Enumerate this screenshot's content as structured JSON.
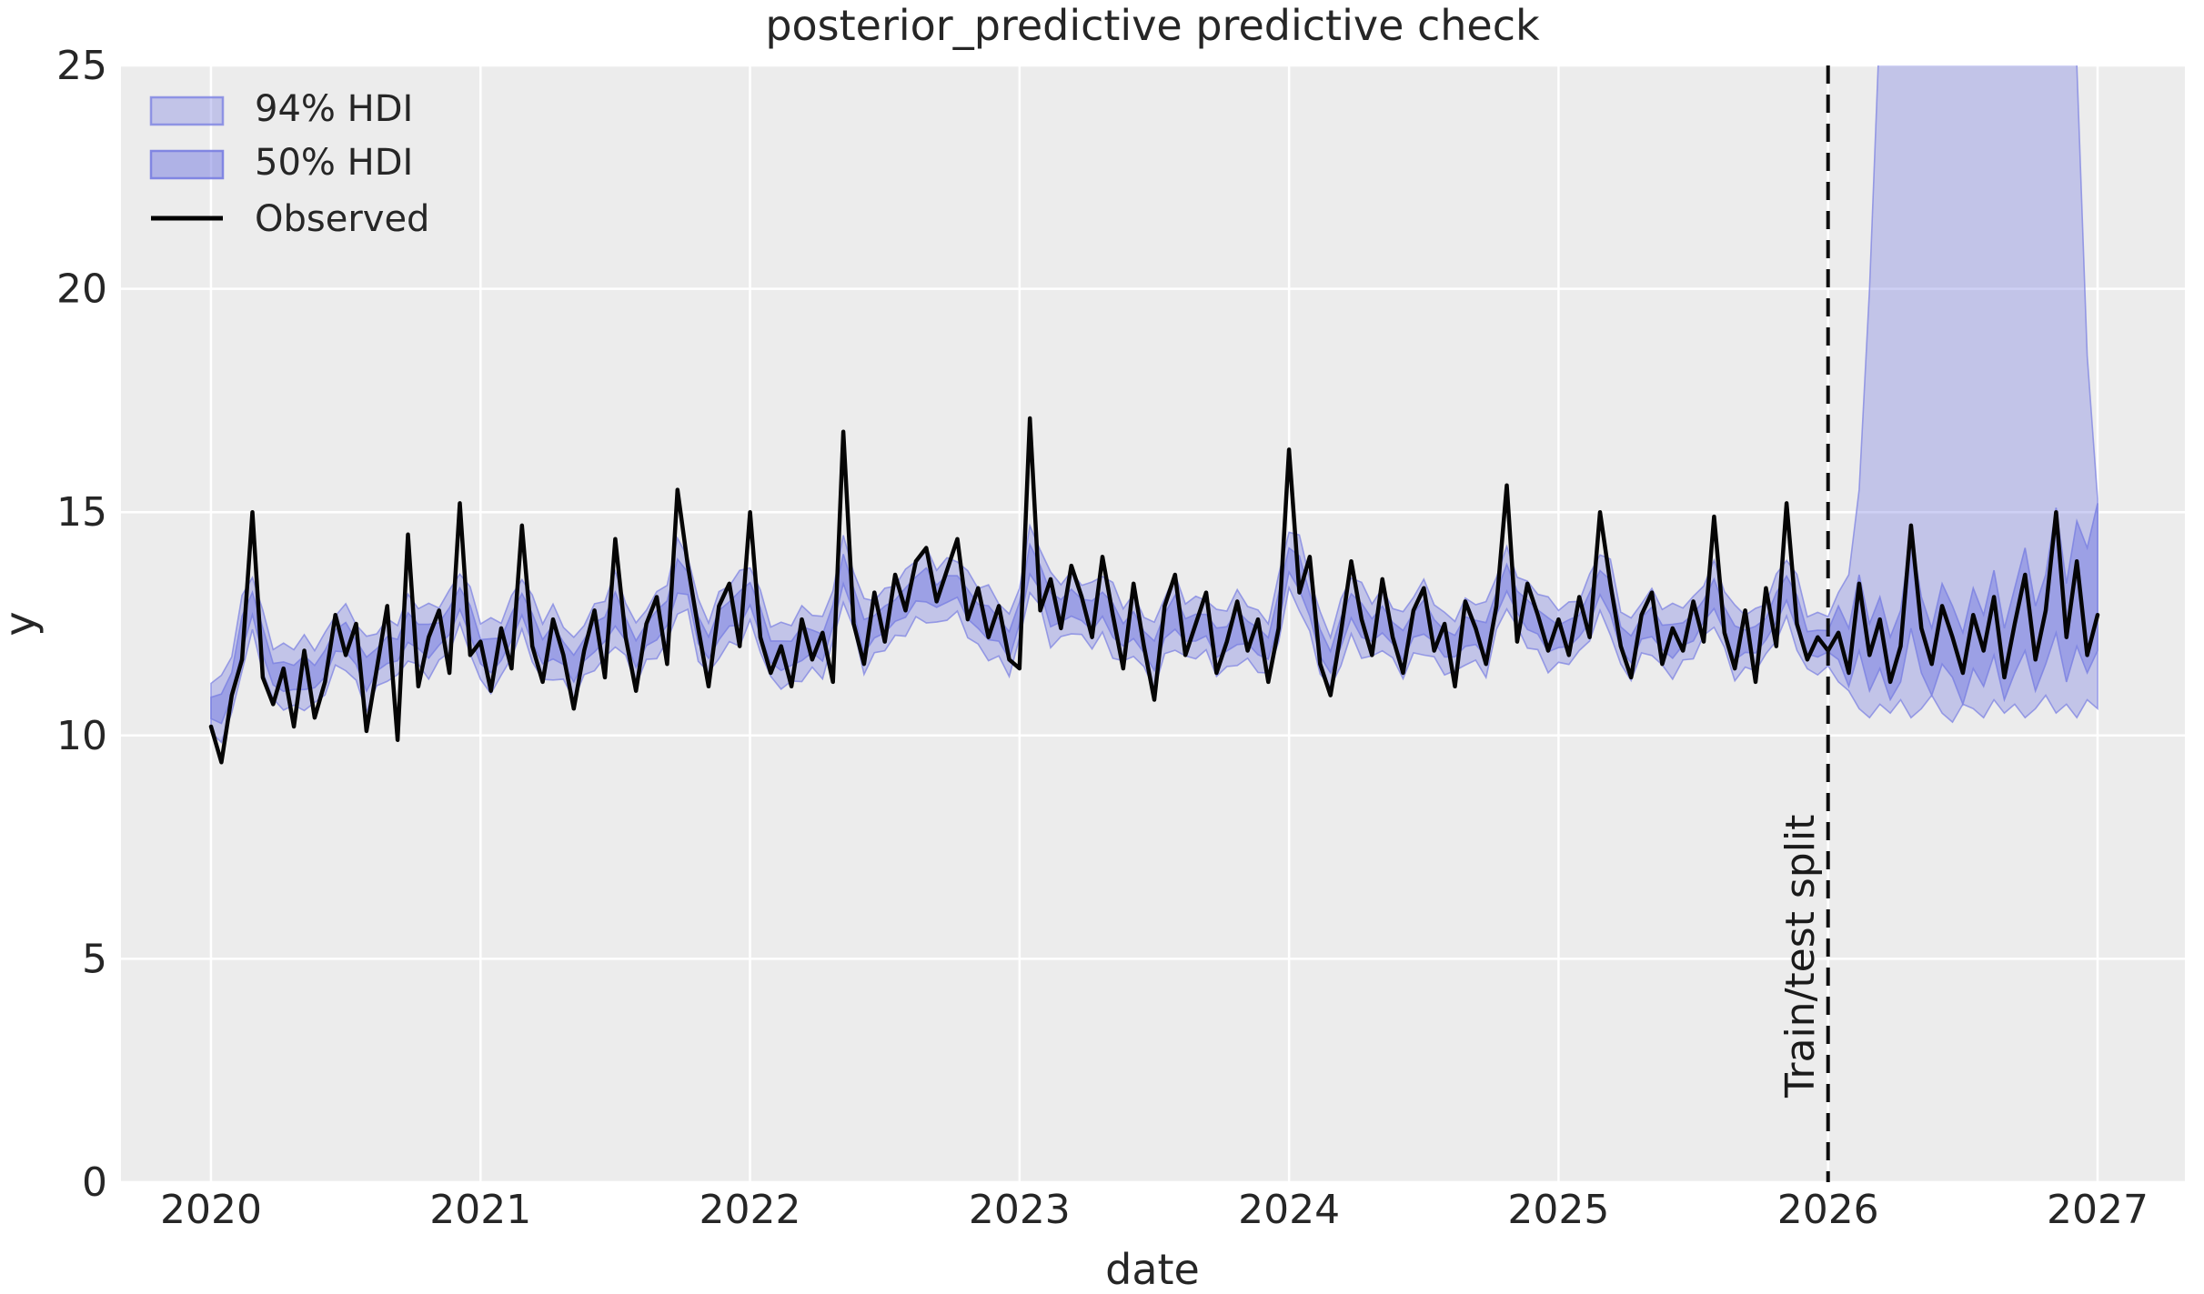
{
  "chart_data": {
    "type": "line",
    "title": "posterior_predictive predictive check",
    "xlabel": "date",
    "ylabel": "y",
    "xlim": [
      2019.666,
      2027.324
    ],
    "ylim": [
      0,
      25
    ],
    "x_ticks": [
      2020,
      2021,
      2022,
      2023,
      2024,
      2025,
      2026,
      2027
    ],
    "y_ticks": [
      0,
      5,
      10,
      15,
      20,
      25
    ],
    "grid": true,
    "style": {
      "figure_background": "#ffffff",
      "axes_background": "#ececec",
      "grid_color": "#ffffff",
      "observed_color": "#050505",
      "hdi_base_color": "#7d83e2",
      "hdi94_opacity": 0.38,
      "hdi50_opacity": 0.55,
      "split_line_color": "#0d0d0d"
    },
    "legend": {
      "position": "upper left",
      "items": [
        {
          "label": "94% HDI",
          "type": "band",
          "color": "#7d83e2",
          "opacity": 0.38
        },
        {
          "label": "50% HDI",
          "type": "band",
          "color": "#7d83e2",
          "opacity": 0.55
        },
        {
          "label": "Observed",
          "type": "line",
          "color": "#000000"
        }
      ]
    },
    "annotations": {
      "train_test_split": {
        "x": 2026.0,
        "label": "Train/test split",
        "line_style": "dashed"
      }
    },
    "x_start": 2020.0,
    "x_step": 0.038462,
    "series": [
      {
        "name": "Observed",
        "values": [
          10.2,
          9.4,
          10.9,
          11.7,
          15.0,
          11.3,
          10.7,
          11.5,
          10.2,
          11.9,
          10.4,
          11.2,
          12.7,
          11.8,
          12.5,
          10.1,
          11.5,
          12.9,
          9.9,
          14.5,
          11.1,
          12.2,
          12.8,
          11.4,
          15.2,
          11.8,
          12.1,
          11.0,
          12.4,
          11.5,
          14.7,
          12.0,
          11.2,
          12.6,
          11.8,
          10.6,
          11.9,
          12.8,
          11.3,
          14.4,
          12.2,
          11.0,
          12.5,
          13.1,
          11.6,
          15.5,
          13.8,
          12.4,
          11.1,
          12.9,
          13.4,
          12.0,
          15.0,
          12.2,
          11.4,
          12.0,
          11.1,
          12.6,
          11.7,
          12.3,
          11.2,
          16.8,
          12.5,
          11.6,
          13.2,
          12.1,
          13.6,
          12.8,
          13.9,
          14.2,
          13.0,
          13.7,
          14.4,
          12.6,
          13.3,
          12.2,
          12.9,
          11.7,
          11.5,
          17.1,
          12.8,
          13.5,
          12.4,
          13.8,
          13.1,
          12.2,
          14.0,
          12.7,
          11.5,
          13.4,
          12.0,
          10.8,
          12.9,
          13.6,
          11.8,
          12.5,
          13.2,
          11.4,
          12.1,
          13.0,
          11.9,
          12.6,
          11.2,
          12.4,
          16.4,
          13.2,
          14.0,
          11.6,
          10.9,
          12.3,
          13.9,
          12.6,
          11.8,
          13.5,
          12.2,
          11.4,
          12.8,
          13.3,
          11.9,
          12.5,
          11.1,
          13.0,
          12.4,
          11.6,
          12.9,
          15.6,
          12.1,
          13.4,
          12.7,
          11.9,
          12.6,
          11.8,
          13.1,
          12.2,
          15.0,
          13.4,
          12.0,
          11.3,
          12.7,
          13.2,
          11.6,
          12.4,
          11.9,
          13.0,
          12.1,
          14.9,
          12.3,
          11.5,
          12.8,
          11.2,
          13.3,
          12.0,
          15.2,
          12.5,
          11.7,
          12.2,
          11.9,
          12.3,
          11.4,
          13.4,
          11.8,
          12.6,
          11.2,
          12.0,
          14.7,
          12.4,
          11.6,
          12.9,
          12.2,
          11.4,
          12.7,
          11.9,
          13.1,
          11.3,
          12.5,
          13.6,
          11.7,
          12.8,
          15.0,
          12.2,
          13.9,
          11.8,
          12.7
        ]
      }
    ],
    "hdi": {
      "pre_split": {
        "center_mean": 12.2,
        "center_shrink": 0.28,
        "half_width_94_cycle": [
          0.55,
          0.75,
          0.62,
          0.85,
          0.58,
          0.7
        ],
        "half_width_50_cycle": [
          0.24,
          0.33,
          0.27,
          0.38,
          0.25,
          0.3
        ]
      },
      "post_split_start_index": 157,
      "hdi94_upper_post": [
        13.2,
        13.6,
        15.5,
        20.0,
        26.0,
        28.5,
        29.0,
        29.5,
        29.0,
        28.5,
        29.5,
        29.0,
        28.5,
        29.0,
        29.5,
        29.0,
        28.5,
        29.0,
        29.5,
        29.0,
        28.5,
        29.0,
        28.0,
        25.0,
        18.5,
        15.3
      ],
      "hdi94_lower_post": [
        11.2,
        11.0,
        10.6,
        10.4,
        10.7,
        10.5,
        10.8,
        10.4,
        10.6,
        10.9,
        10.5,
        10.3,
        10.7,
        10.6,
        10.4,
        10.8,
        10.5,
        10.7,
        10.4,
        10.6,
        10.9,
        10.5,
        10.7,
        10.4,
        10.8,
        10.6
      ],
      "hdi50_upper_post": [
        12.9,
        12.4,
        13.6,
        12.5,
        13.1,
        12.2,
        12.8,
        14.5,
        13.1,
        12.4,
        13.4,
        12.9,
        12.3,
        13.3,
        12.7,
        13.7,
        12.4,
        13.3,
        14.2,
        12.9,
        13.6,
        15.1,
        13.4,
        14.8,
        14.2,
        15.2
      ],
      "hdi50_lower_post": [
        11.7,
        11.1,
        11.9,
        11.0,
        11.5,
        10.8,
        11.2,
        12.4,
        11.4,
        10.9,
        11.6,
        11.3,
        10.7,
        11.5,
        11.1,
        11.8,
        10.8,
        11.4,
        11.9,
        11.0,
        11.6,
        12.3,
        11.2,
        12.0,
        11.4,
        11.9
      ]
    }
  }
}
